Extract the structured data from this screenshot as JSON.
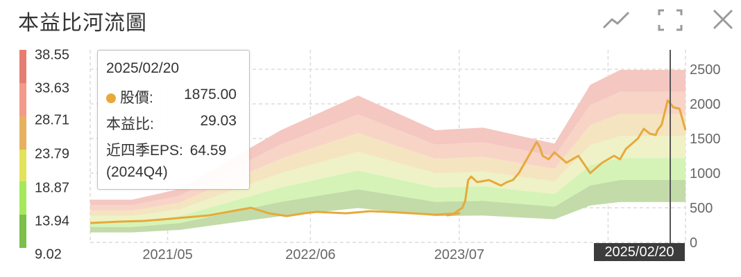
{
  "title": "本益比河流圖",
  "toolbar": {
    "trend_icon": "line-trend-icon",
    "fullscreen_icon": "fullscreen-icon",
    "close_icon": "close-icon"
  },
  "colors": {
    "bands": [
      "#c2dba8",
      "#d5f3b7",
      "#eef2c6",
      "#f5e4c0",
      "#f8d4c7",
      "#f4c7c1"
    ],
    "price_line": "#e7a93a",
    "legend": [
      "#7cbf4a",
      "#a6e85c",
      "#e1e35a",
      "#e6b260",
      "#f39a8a",
      "#e67d72"
    ]
  },
  "legend": {
    "labels": [
      "38.55",
      "33.63",
      "28.71",
      "23.79",
      "18.87",
      "13.94",
      "9.02"
    ]
  },
  "tooltip": {
    "date": "2025/02/20",
    "price_label": "股價:",
    "price_value": "1875.00",
    "pe_label": "本益比:",
    "pe_value": "29.03",
    "eps_label": "近四季EPS:",
    "eps_value": "64.59",
    "quarter": "(2024Q4)"
  },
  "crosshair": {
    "date_label": "2025/02/20"
  },
  "chart_data": {
    "type": "area",
    "title": "本益比河流圖",
    "xlabel": "",
    "ylabel": "",
    "ylim": [
      0,
      2500
    ],
    "yticks": [
      0,
      500,
      1000,
      1500,
      2000,
      2500
    ],
    "x_tick_labels": [
      "2021/05",
      "2022/06",
      "2023/07",
      "2"
    ],
    "grid": true,
    "pe_levels": [
      9.02,
      13.94,
      18.87,
      23.79,
      28.71,
      33.63,
      38.55
    ],
    "eps_x": [
      0,
      0.07,
      0.15,
      0.32,
      0.45,
      0.58,
      0.66,
      0.78,
      0.84,
      0.89,
      1.0
    ],
    "eps": [
      16.0,
      16.0,
      20.0,
      42.0,
      55.0,
      42.0,
      43.0,
      37.0,
      59.0,
      64.59,
      64.59
    ],
    "price_series": {
      "name": "股價",
      "x": [
        0,
        0.05,
        0.09,
        0.12,
        0.16,
        0.2,
        0.25,
        0.27,
        0.3,
        0.33,
        0.36,
        0.38,
        0.43,
        0.47,
        0.5,
        0.52,
        0.54,
        0.58,
        0.62,
        0.6,
        0.61,
        0.625,
        0.63,
        0.635,
        0.64,
        0.65,
        0.67,
        0.69,
        0.7,
        0.71,
        0.72,
        0.74,
        0.75,
        0.755,
        0.76,
        0.77,
        0.78,
        0.8,
        0.82,
        0.84,
        0.86,
        0.88,
        0.89,
        0.9,
        0.92,
        0.93,
        0.94,
        0.95,
        0.953,
        0.96,
        0.97,
        0.98,
        0.99,
        1.0
      ],
      "y": [
        280,
        300,
        310,
        330,
        360,
        390,
        470,
        500,
        420,
        380,
        420,
        440,
        420,
        450,
        440,
        430,
        420,
        400,
        420,
        390,
        410,
        500,
        600,
        900,
        950,
        870,
        900,
        820,
        870,
        900,
        1000,
        1300,
        1450,
        1380,
        1250,
        1200,
        1300,
        1150,
        1250,
        1000,
        1150,
        1250,
        1200,
        1350,
        1500,
        1640,
        1570,
        1550,
        1620,
        1700,
        2050,
        1950,
        1930,
        1620
      ]
    }
  }
}
